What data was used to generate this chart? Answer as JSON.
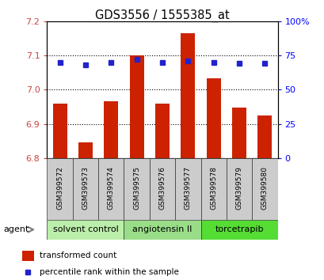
{
  "title": "GDS3556 / 1555385_at",
  "samples": [
    "GSM399572",
    "GSM399573",
    "GSM399574",
    "GSM399575",
    "GSM399576",
    "GSM399577",
    "GSM399578",
    "GSM399579",
    "GSM399580"
  ],
  "red_values": [
    6.96,
    6.845,
    6.965,
    7.1,
    6.958,
    7.165,
    7.033,
    6.947,
    6.924
  ],
  "blue_percentile": [
    70,
    68,
    70,
    72,
    70,
    71,
    70,
    69,
    69
  ],
  "groups": [
    {
      "label": "solvent control",
      "indices": [
        0,
        1,
        2
      ]
    },
    {
      "label": "angiotensin II",
      "indices": [
        3,
        4,
        5
      ]
    },
    {
      "label": "torcetrapib",
      "indices": [
        6,
        7,
        8
      ]
    }
  ],
  "group_colors": [
    "#bbeeaa",
    "#99dd88",
    "#55dd33"
  ],
  "ymin": 6.8,
  "ymax": 7.2,
  "y2min": 0,
  "y2max": 100,
  "yticks": [
    6.8,
    6.9,
    7.0,
    7.1,
    7.2
  ],
  "y2ticks": [
    0,
    25,
    50,
    75,
    100
  ],
  "y2ticklabels": [
    "0",
    "25",
    "50",
    "75",
    "100%"
  ],
  "bar_color": "#cc2200",
  "dot_color": "#2222cc",
  "bar_width": 0.55,
  "agent_label": "agent",
  "legend_red": "transformed count",
  "legend_blue": "percentile rank within the sample"
}
